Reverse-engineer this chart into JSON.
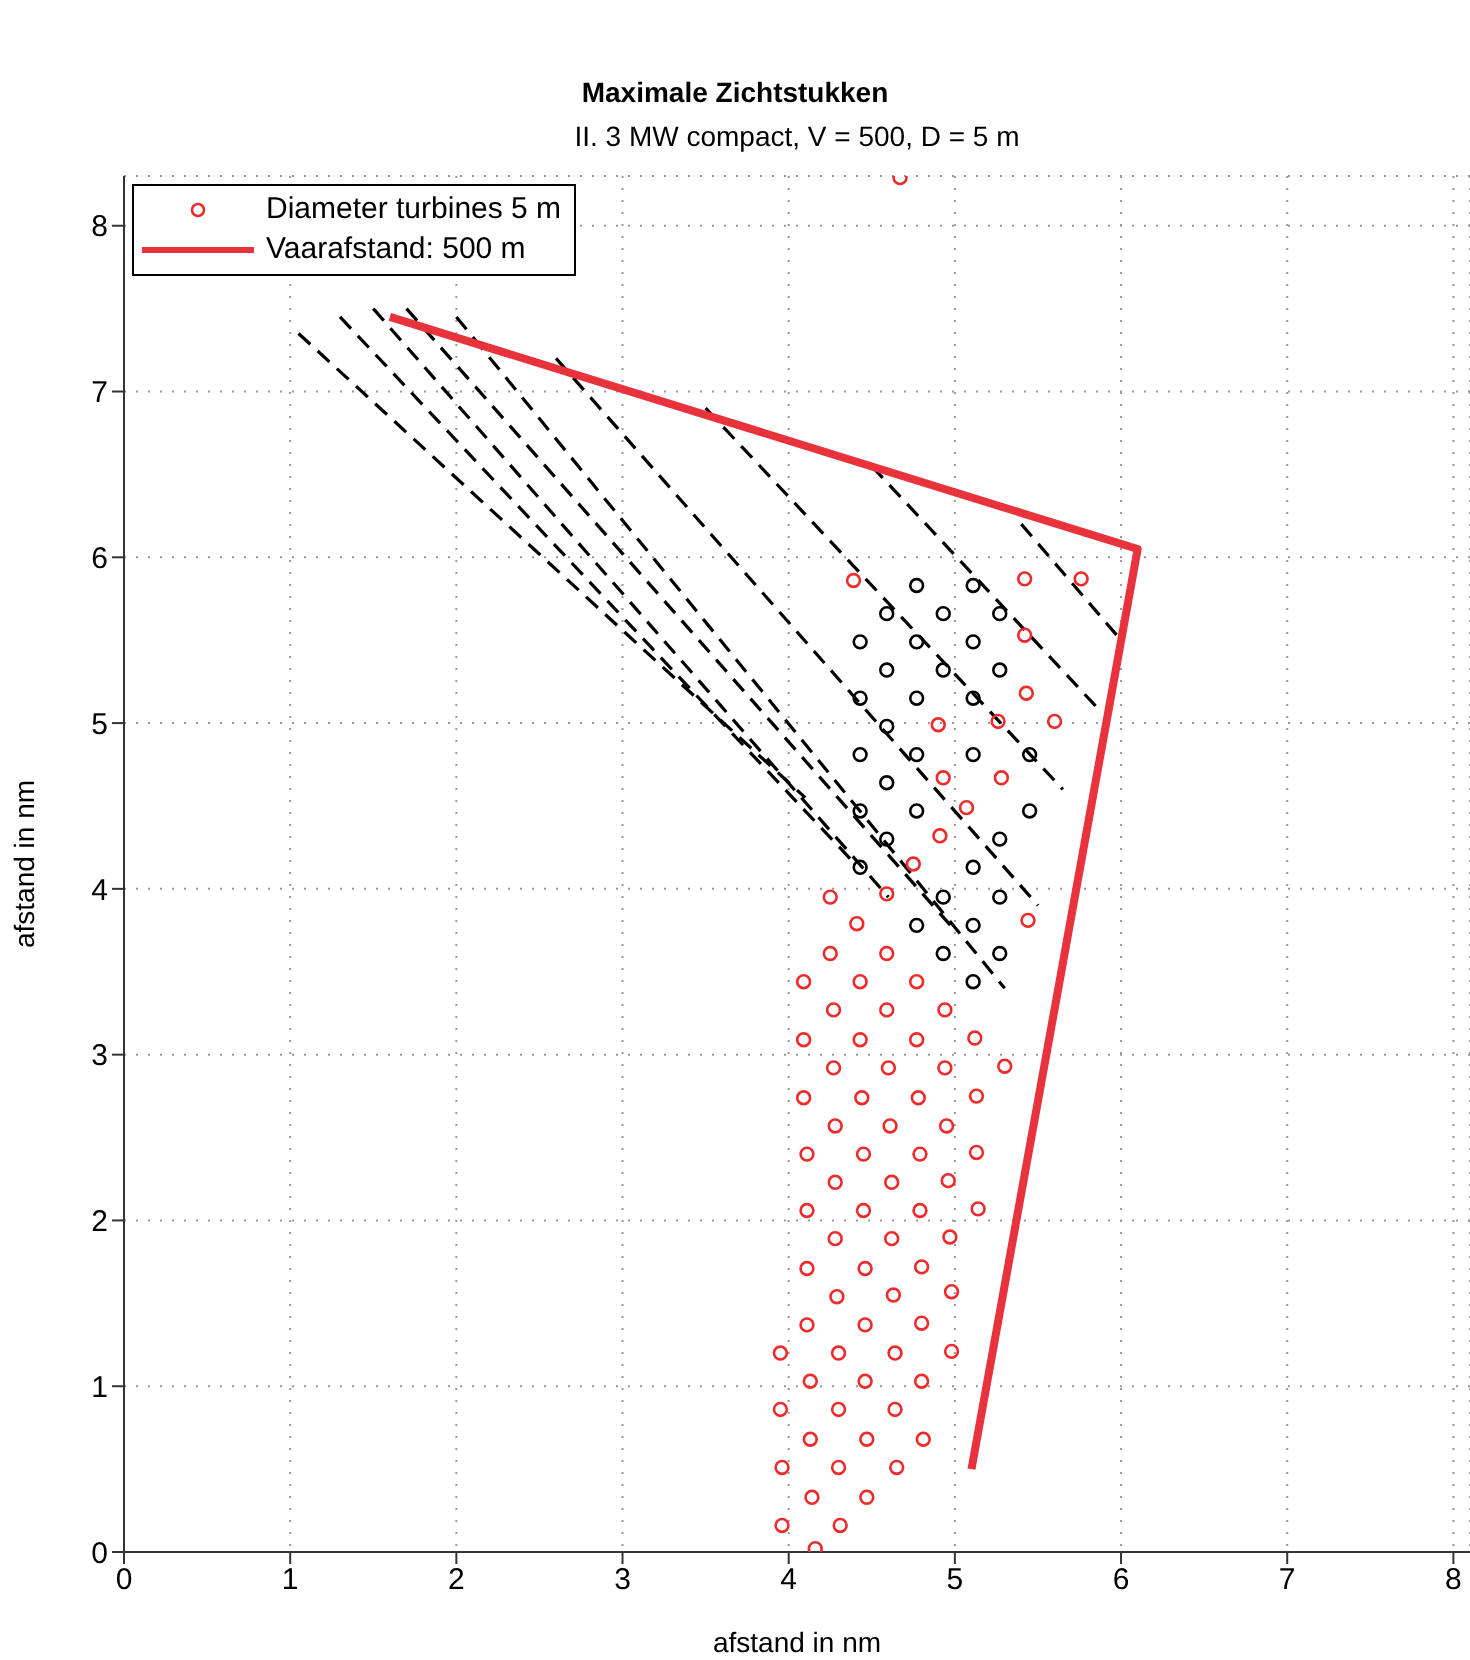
{
  "chart_data": {
    "type": "scatter",
    "title": "Maximale Zichtstukken",
    "subtitle": "II.  3 MW compact, V = 500, D = 5 m",
    "xlabel": "afstand in nm",
    "ylabel": "afstand in nm",
    "xlim": [
      0,
      8.1
    ],
    "ylim": [
      0,
      8.3
    ],
    "xticks": [
      0,
      1,
      2,
      3,
      4,
      5,
      6,
      7,
      8
    ],
    "yticks": [
      0,
      1,
      2,
      3,
      4,
      5,
      6,
      7,
      8
    ],
    "grid": true,
    "legend": "top left",
    "series": [
      {
        "type": "line",
        "color": "#000000",
        "line_style": "dashed",
        "marker": "none",
        "x": [
          1.05,
          4.1
        ],
        "values": [
          7.35,
          4.55
        ]
      },
      {
        "type": "line",
        "color": "#000000",
        "line_style": "dashed",
        "marker": "none",
        "x": [
          1.3,
          4.4
        ],
        "values": [
          7.45,
          4.15
        ]
      },
      {
        "type": "line",
        "color": "#000000",
        "line_style": "dashed",
        "marker": "none",
        "x": [
          1.5,
          4.6
        ],
        "values": [
          7.5,
          3.95
        ]
      },
      {
        "type": "line",
        "color": "#000000",
        "line_style": "dashed",
        "marker": "none",
        "x": [
          1.7,
          5.0
        ],
        "values": [
          7.5,
          3.75
        ]
      },
      {
        "type": "line",
        "color": "#000000",
        "line_style": "dashed",
        "marker": "none",
        "x": [
          2.0,
          5.3
        ],
        "values": [
          7.45,
          3.4
        ]
      },
      {
        "type": "line",
        "color": "#000000",
        "line_style": "dashed",
        "marker": "none",
        "x": [
          2.6,
          5.5
        ],
        "values": [
          7.2,
          3.9
        ]
      },
      {
        "type": "line",
        "color": "#000000",
        "line_style": "dashed",
        "marker": "none",
        "x": [
          3.5,
          5.65
        ],
        "values": [
          6.9,
          4.6
        ]
      },
      {
        "type": "line",
        "color": "#000000",
        "line_style": "dashed",
        "marker": "none",
        "x": [
          4.5,
          5.85
        ],
        "values": [
          6.55,
          5.1
        ]
      },
      {
        "type": "line",
        "color": "#000000",
        "line_style": "dashed",
        "marker": "none",
        "x": [
          5.4,
          6.0
        ],
        "values": [
          6.2,
          5.5
        ]
      },
      {
        "color": "#000000",
        "marker": "circle",
        "x": [
          4.43,
          5.11,
          4.59,
          5.27,
          4.43,
          4.77,
          5.45,
          4.59,
          4.43,
          4.77,
          5.11,
          5.45,
          4.59,
          4.43,
          4.77,
          5.11,
          4.59,
          4.93,
          5.27,
          4.43,
          4.77,
          5.11,
          4.59,
          4.93,
          5.27,
          4.77,
          5.11,
          4.93,
          5.27,
          4.77,
          5.11,
          4.93,
          5.27,
          5.11
        ],
        "values": [
          4.13,
          4.13,
          4.3,
          4.3,
          4.47,
          4.47,
          4.47,
          4.64,
          4.81,
          4.81,
          4.81,
          4.81,
          4.98,
          5.15,
          5.15,
          5.15,
          5.32,
          5.32,
          5.32,
          5.49,
          5.49,
          5.49,
          5.66,
          5.66,
          5.66,
          5.83,
          5.83,
          3.95,
          3.95,
          3.78,
          3.78,
          3.61,
          3.61,
          3.44
        ]
      },
      {
        "name": "Diameter turbines 5 m",
        "color": "#ee2a2a",
        "marker": "circle",
        "x": [
          4.25,
          4.41,
          4.25,
          4.59,
          4.09,
          4.43,
          4.77,
          4.27,
          4.59,
          4.94,
          4.09,
          4.43,
          4.77,
          5.12,
          4.27,
          4.6,
          4.94,
          5.3,
          4.09,
          4.44,
          4.78,
          5.13,
          4.28,
          4.61,
          4.95,
          4.11,
          4.45,
          4.79,
          5.13,
          4.28,
          4.62,
          4.96,
          4.11,
          4.45,
          4.79,
          5.14,
          4.28,
          4.62,
          4.97,
          4.11,
          4.46,
          4.8,
          4.29,
          4.63,
          4.98,
          4.11,
          4.46,
          4.8,
          3.95,
          4.3,
          4.64,
          4.98,
          4.13,
          4.46,
          4.8,
          3.95,
          4.3,
          4.64,
          4.13,
          4.47,
          4.81,
          3.96,
          4.3,
          4.65,
          4.14,
          4.47,
          3.96,
          4.31,
          4.16,
          4.39,
          5.42,
          5.76,
          5.42,
          5.43,
          5.6,
          5.26,
          4.9,
          5.28,
          4.93,
          5.07,
          4.91,
          4.75,
          4.59,
          5.44,
          4.67
        ],
        "values": [
          3.95,
          3.79,
          3.61,
          3.61,
          3.44,
          3.44,
          3.44,
          3.27,
          3.27,
          3.27,
          3.09,
          3.09,
          3.09,
          3.1,
          2.92,
          2.92,
          2.92,
          2.93,
          2.74,
          2.74,
          2.74,
          2.75,
          2.57,
          2.57,
          2.57,
          2.4,
          2.4,
          2.4,
          2.41,
          2.23,
          2.23,
          2.24,
          2.06,
          2.06,
          2.06,
          2.07,
          1.89,
          1.89,
          1.9,
          1.71,
          1.71,
          1.72,
          1.54,
          1.55,
          1.57,
          1.37,
          1.37,
          1.38,
          1.2,
          1.2,
          1.2,
          1.21,
          1.03,
          1.03,
          1.03,
          0.86,
          0.86,
          0.86,
          0.68,
          0.68,
          0.68,
          0.51,
          0.51,
          0.51,
          0.33,
          0.33,
          0.16,
          0.16,
          0.02,
          5.86,
          5.87,
          5.87,
          5.53,
          5.18,
          5.01,
          5.01,
          4.99,
          4.67,
          4.67,
          4.49,
          4.32,
          4.15,
          3.97,
          3.81,
          8.29
        ]
      },
      {
        "type": "line",
        "name": "Vaarafstand: 500 m",
        "color": "#e8323c",
        "line_style": "solid",
        "marker": "none",
        "x": [
          5.1,
          6.1,
          1.6
        ],
        "values": [
          0.5,
          6.05,
          7.45
        ]
      }
    ]
  }
}
